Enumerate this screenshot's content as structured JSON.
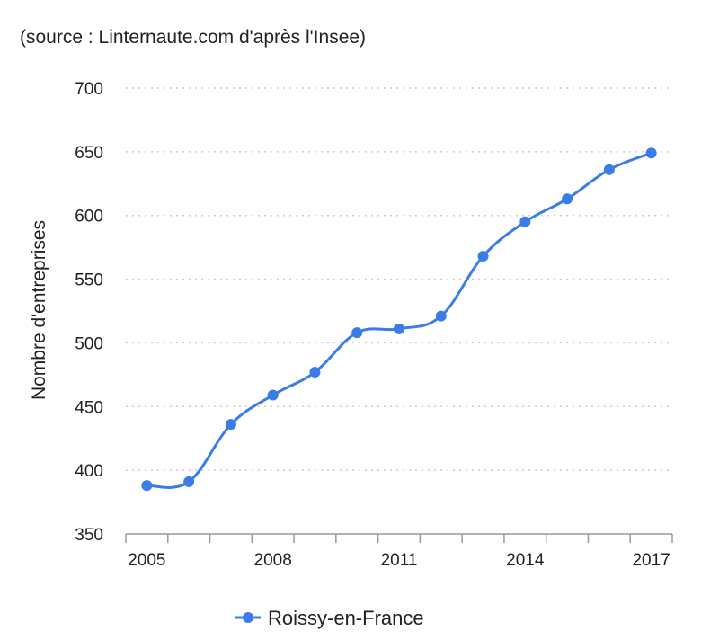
{
  "source_note": "(source : Linternaute.com d'après l'Insee)",
  "colors": {
    "series": "#3a7ce8",
    "grid": "#cccccc",
    "axis": "#999999"
  },
  "chart_data": {
    "type": "line",
    "title": "",
    "xlabel": "",
    "ylabel": "Nombre d'entreprises",
    "ylim": [
      350,
      700
    ],
    "yticks": [
      "350",
      "400",
      "450",
      "500",
      "550",
      "600",
      "650",
      "700"
    ],
    "xticks": [
      "2005",
      "2008",
      "2011",
      "2014",
      "2017"
    ],
    "x": [
      2005,
      2006,
      2007,
      2008,
      2009,
      2010,
      2011,
      2012,
      2013,
      2014,
      2015,
      2016,
      2017
    ],
    "series": [
      {
        "name": "Roissy-en-France",
        "values": [
          388,
          391,
          436,
          459,
          477,
          508,
          511,
          521,
          568,
          595,
          613,
          636,
          649
        ]
      }
    ],
    "grid": true,
    "legend_position": "bottom"
  }
}
